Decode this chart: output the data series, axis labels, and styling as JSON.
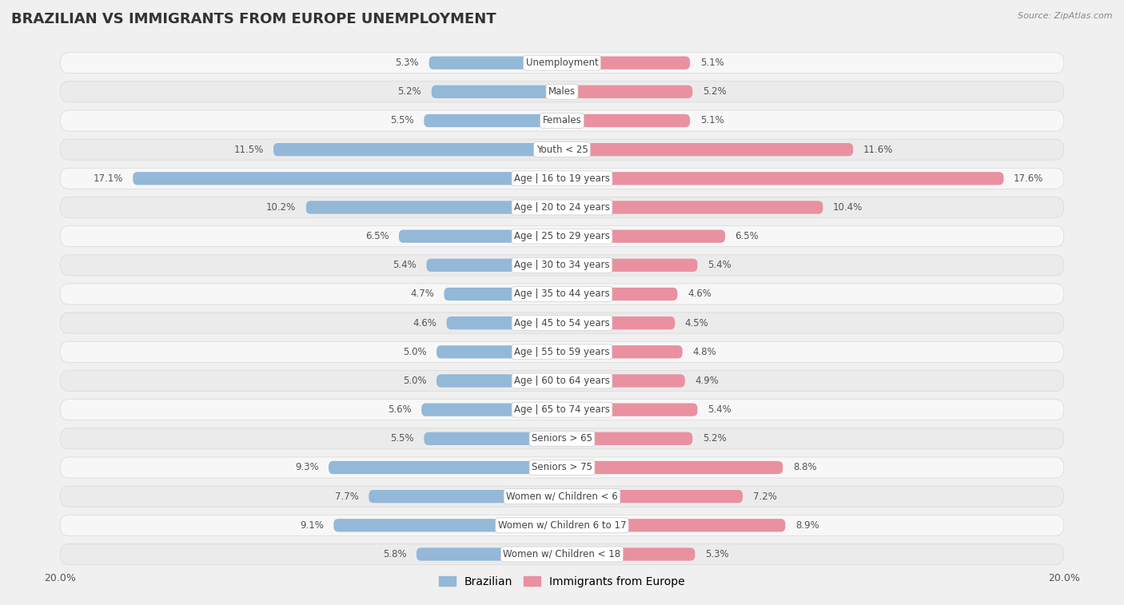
{
  "title": "BRAZILIAN VS IMMIGRANTS FROM EUROPE UNEMPLOYMENT",
  "source": "Source: ZipAtlas.com",
  "categories": [
    "Unemployment",
    "Males",
    "Females",
    "Youth < 25",
    "Age | 16 to 19 years",
    "Age | 20 to 24 years",
    "Age | 25 to 29 years",
    "Age | 30 to 34 years",
    "Age | 35 to 44 years",
    "Age | 45 to 54 years",
    "Age | 55 to 59 years",
    "Age | 60 to 64 years",
    "Age | 65 to 74 years",
    "Seniors > 65",
    "Seniors > 75",
    "Women w/ Children < 6",
    "Women w/ Children 6 to 17",
    "Women w/ Children < 18"
  ],
  "brazilian": [
    5.3,
    5.2,
    5.5,
    11.5,
    17.1,
    10.2,
    6.5,
    5.4,
    4.7,
    4.6,
    5.0,
    5.0,
    5.6,
    5.5,
    9.3,
    7.7,
    9.1,
    5.8
  ],
  "immigrants": [
    5.1,
    5.2,
    5.1,
    11.6,
    17.6,
    10.4,
    6.5,
    5.4,
    4.6,
    4.5,
    4.8,
    4.9,
    5.4,
    5.2,
    8.8,
    7.2,
    8.9,
    5.3
  ],
  "brazilian_color": "#93b8d8",
  "immigrants_color": "#e991a0",
  "row_light_color": "#f7f7f7",
  "row_dark_color": "#ebebeb",
  "row_border_color": "#d8d8d8",
  "background_color": "#f0f0f0",
  "xlim": 20.0,
  "title_fontsize": 13,
  "label_fontsize": 8.5,
  "value_fontsize": 8.5,
  "legend_fontsize": 10,
  "source_fontsize": 8
}
